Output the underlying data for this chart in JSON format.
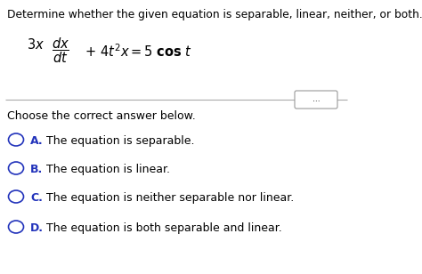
{
  "title": "Determine whether the given equation is separable, linear, neither, or both.",
  "divider_dots": "...",
  "prompt": "Choose the correct answer below.",
  "options": [
    {
      "label": "A.",
      "text": "  The equation is separable."
    },
    {
      "label": "B.",
      "text": "  The equation is linear."
    },
    {
      "label": "C.",
      "text": "  The equation is neither separable nor linear."
    },
    {
      "label": "D.",
      "text": "  The equation is both separable and linear."
    }
  ],
  "bg_color": "#ffffff",
  "text_color": "#000000",
  "label_color": "#2233bb",
  "circle_color": "#2233bb",
  "font_size_title": 8.8,
  "font_size_body": 9.0,
  "font_size_eq": 10.5
}
